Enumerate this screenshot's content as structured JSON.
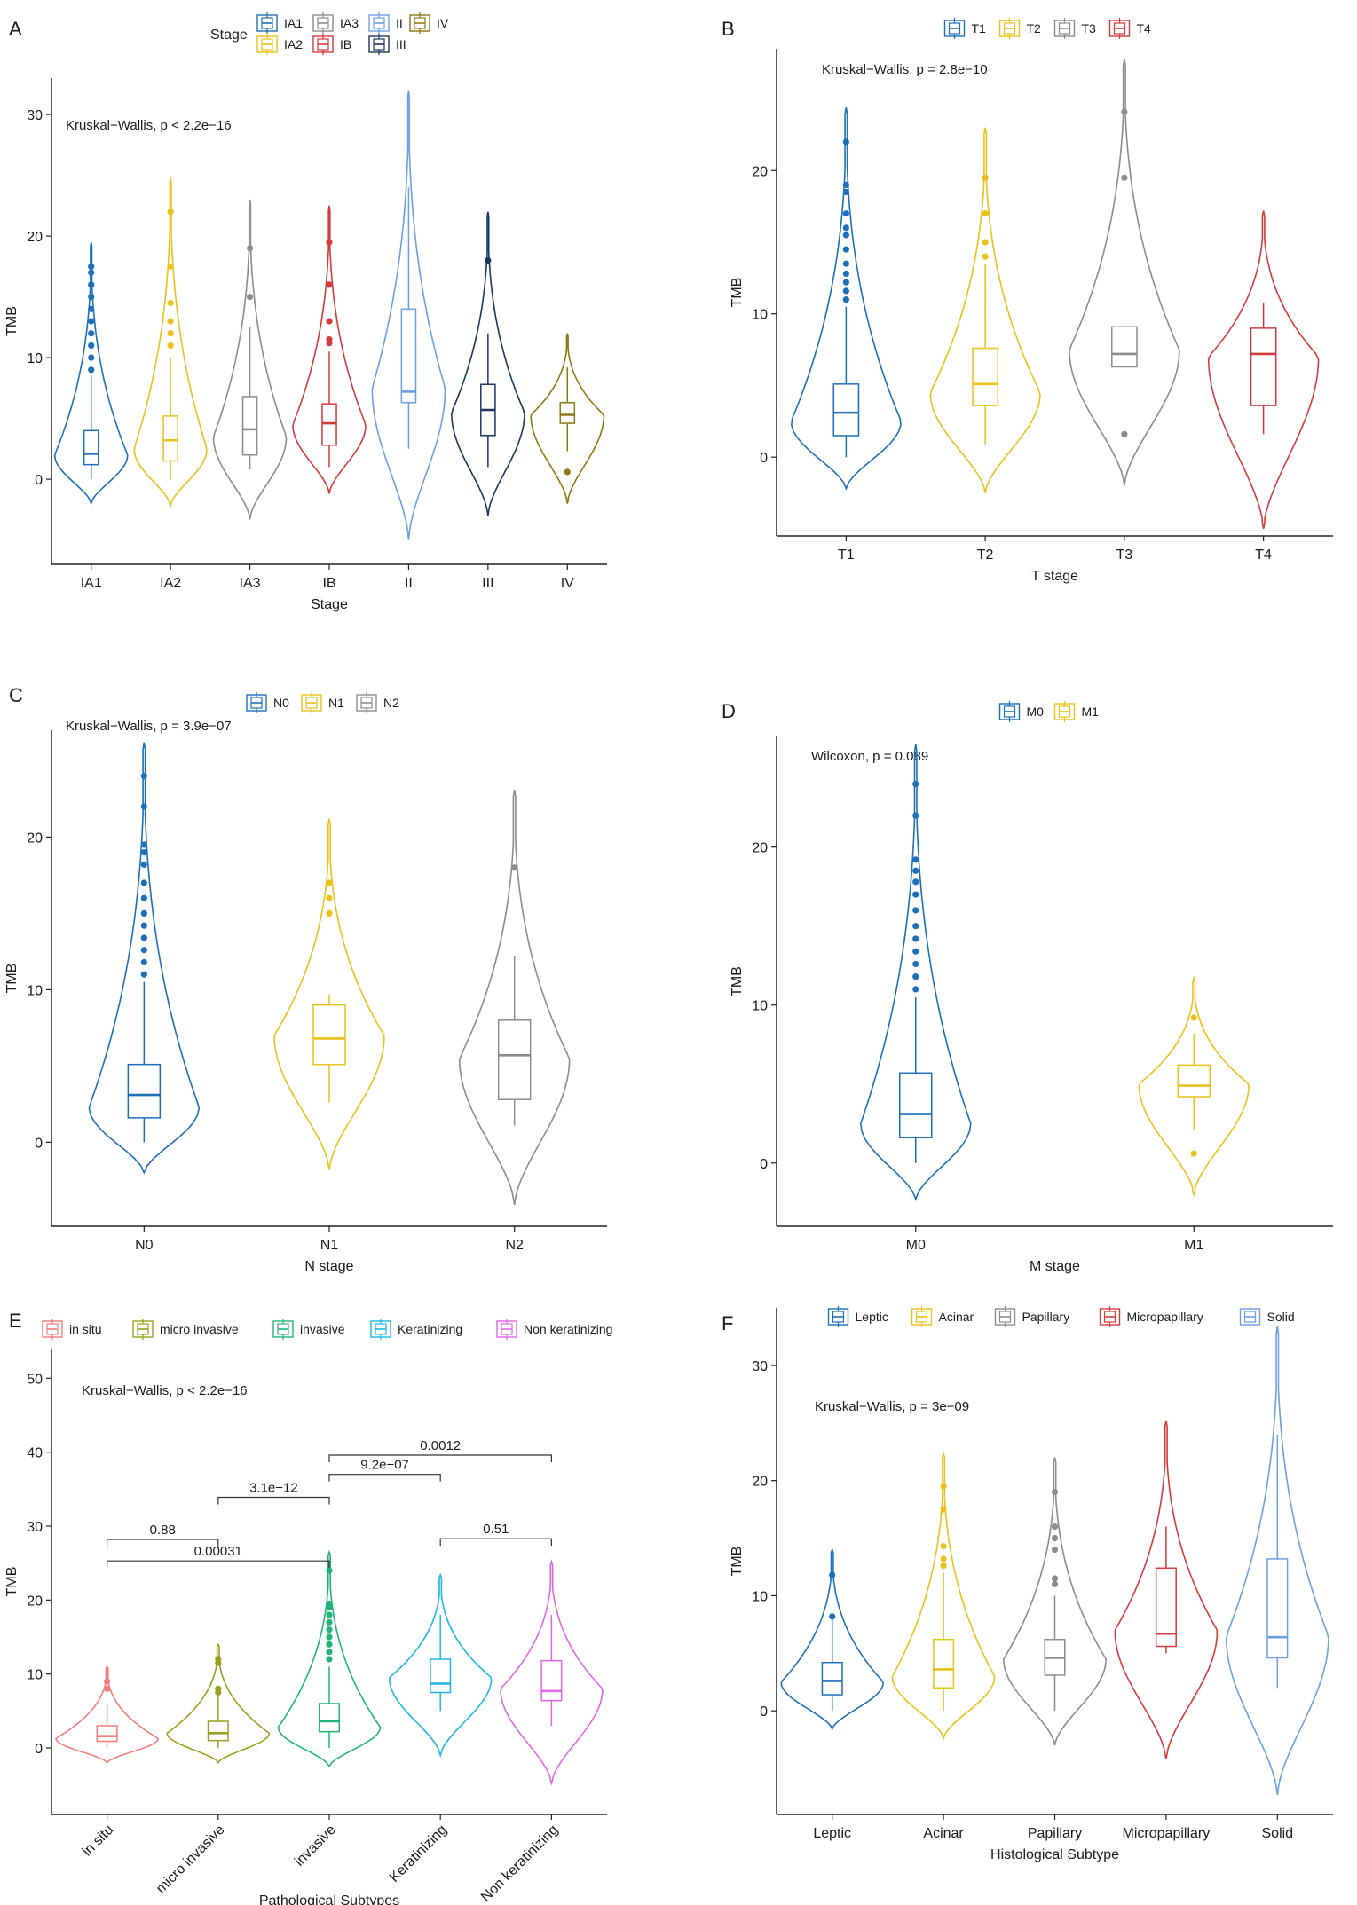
{
  "colors": {
    "blue": "#1F6FB8",
    "yellow": "#E9C11A",
    "gray": "#8C8C8C",
    "red": "#D23B3B",
    "lightblue": "#6E9FE0",
    "navy": "#1C355E",
    "olive": "#8B7A12",
    "salmon": "#F07C7C",
    "olivegreen": "#9AA11F",
    "green": "#22B27A",
    "cyan": "#1DB6E6",
    "magenta": "#E066E8"
  },
  "chart_data": [
    {
      "panel": "A",
      "type": "violin",
      "title": "",
      "xlabel": "Stage",
      "ylabel": "TMB",
      "ylim": [
        -7,
        33
      ],
      "yticks": [
        0,
        10,
        20,
        30
      ],
      "test": "Kruskal−Wallis, p < 2.2e−16",
      "legend_title": "Stage",
      "legend": [
        "IA1",
        "IA2",
        "IA3",
        "IB",
        "II",
        "III",
        "IV"
      ],
      "categories": [
        "IA1",
        "IA2",
        "IA3",
        "IB",
        "II",
        "III",
        "IV"
      ],
      "series": [
        {
          "name": "IA1",
          "color": "blue",
          "vmin": -2,
          "vmax": 19.5,
          "q1": 1.2,
          "median": 2.1,
          "q3": 4.0,
          "wlo": 0,
          "whi": 8.5,
          "mode": 2,
          "outliers": [
            9,
            10,
            11,
            12,
            13,
            14,
            15,
            16,
            17,
            17.5
          ]
        },
        {
          "name": "IA2",
          "color": "yellow",
          "vmin": -2.2,
          "vmax": 24.8,
          "q1": 1.5,
          "median": 3.2,
          "q3": 5.2,
          "wlo": 0,
          "whi": 10,
          "mode": 2.5,
          "outliers": [
            11,
            12,
            13,
            14.5,
            17.5,
            22
          ]
        },
        {
          "name": "IA3",
          "color": "gray",
          "vmin": -3.3,
          "vmax": 23,
          "q1": 2.0,
          "median": 4.1,
          "q3": 6.8,
          "wlo": 0.8,
          "whi": 12.5,
          "mode": 3.5,
          "outliers": [
            15,
            19
          ]
        },
        {
          "name": "IB",
          "color": "red",
          "vmin": -1.2,
          "vmax": 22.5,
          "q1": 2.8,
          "median": 4.6,
          "q3": 6.2,
          "wlo": 1,
          "whi": 10.5,
          "mode": 4.5,
          "outliers": [
            11.2,
            11.5,
            13,
            16,
            19.5
          ]
        },
        {
          "name": "II",
          "color": "lightblue",
          "vmin": -5,
          "vmax": 32,
          "q1": 6.3,
          "median": 7.2,
          "q3": 14,
          "wlo": 2.5,
          "whi": 24,
          "mode": 7.5,
          "outliers": []
        },
        {
          "name": "III",
          "color": "navy",
          "vmin": -3,
          "vmax": 22,
          "q1": 3.6,
          "median": 5.7,
          "q3": 7.8,
          "wlo": 1,
          "whi": 12,
          "mode": 5.5,
          "outliers": [
            18
          ]
        },
        {
          "name": "IV",
          "color": "olive",
          "vmin": -2,
          "vmax": 12,
          "q1": 4.6,
          "median": 5.3,
          "q3": 6.3,
          "wlo": 2.3,
          "whi": 9.2,
          "mode": 5.3,
          "outliers": [
            0.6
          ]
        }
      ],
      "brackets": []
    },
    {
      "panel": "B",
      "type": "violin",
      "title": "",
      "xlabel": "T stage",
      "ylabel": "TMB",
      "ylim": [
        -5.5,
        28.5
      ],
      "yticks": [
        0,
        10,
        20
      ],
      "test": "Kruskal−Wallis, p = 2.8e−10",
      "legend_title": "",
      "legend": [
        "T1",
        "T2",
        "T3",
        "T4"
      ],
      "categories": [
        "T1",
        "T2",
        "T3",
        "T4"
      ],
      "series": [
        {
          "name": "T1",
          "color": "blue",
          "vmin": -2.2,
          "vmax": 24.4,
          "q1": 1.5,
          "median": 3.1,
          "q3": 5.1,
          "wlo": 0,
          "whi": 10.5,
          "mode": 2.5,
          "outliers": [
            11,
            11.6,
            12.2,
            12.8,
            13.5,
            14.5,
            15.5,
            16,
            17,
            18.5,
            19,
            22
          ]
        },
        {
          "name": "T2",
          "color": "yellow",
          "vmin": -2.5,
          "vmax": 23,
          "q1": 3.6,
          "median": 5.1,
          "q3": 7.6,
          "wlo": 0.9,
          "whi": 13.5,
          "mode": 4.5,
          "outliers": [
            14,
            15,
            17,
            19.5
          ]
        },
        {
          "name": "T3",
          "color": "gray",
          "vmin": -2,
          "vmax": 27.8,
          "q1": 6.3,
          "median": 7.2,
          "q3": 9.1,
          "wlo": 6.3,
          "whi": 9.1,
          "mode": 7.5,
          "outliers": [
            1.6,
            19.5,
            24.1
          ]
        },
        {
          "name": "T4",
          "color": "red",
          "vmin": -5,
          "vmax": 17.2,
          "q1": 3.6,
          "median": 7.2,
          "q3": 9.0,
          "wlo": 1.6,
          "whi": 10.8,
          "mode": 7,
          "outliers": []
        }
      ],
      "brackets": []
    },
    {
      "panel": "C",
      "type": "violin",
      "title": "",
      "xlabel": "N stage",
      "ylabel": "TMB",
      "ylim": [
        -5.5,
        27
      ],
      "yticks": [
        0,
        10,
        20
      ],
      "test": "Kruskal−Wallis, p = 3.9e−07",
      "legend_title": "",
      "legend": [
        "N0",
        "N1",
        "N2"
      ],
      "categories": [
        "N0",
        "N1",
        "N2"
      ],
      "series": [
        {
          "name": "N0",
          "color": "blue",
          "vmin": -2,
          "vmax": 26.2,
          "q1": 1.6,
          "median": 3.1,
          "q3": 5.1,
          "wlo": 0,
          "whi": 10.5,
          "mode": 2.3,
          "outliers": [
            11,
            11.8,
            12.6,
            13.4,
            14.2,
            15,
            16,
            17,
            18.2,
            19,
            19.5,
            22,
            24
          ]
        },
        {
          "name": "N1",
          "color": "yellow",
          "vmin": -1.8,
          "vmax": 21.2,
          "q1": 5.1,
          "median": 6.8,
          "q3": 9.0,
          "wlo": 2.6,
          "whi": 9.7,
          "mode": 7,
          "outliers": [
            15,
            16,
            17
          ]
        },
        {
          "name": "N2",
          "color": "gray",
          "vmin": -4.1,
          "vmax": 23.1,
          "q1": 2.8,
          "median": 5.7,
          "q3": 8.0,
          "wlo": 1.1,
          "whi": 12.2,
          "mode": 5.5,
          "outliers": [
            18
          ]
        }
      ],
      "brackets": []
    },
    {
      "panel": "D",
      "type": "violin",
      "title": "",
      "xlabel": "M stage",
      "ylabel": "TMB",
      "ylim": [
        -4,
        27
      ],
      "yticks": [
        0,
        10,
        20
      ],
      "test": "Wilcoxon, p = 0.089",
      "legend_title": "",
      "legend": [
        "M0",
        "M1"
      ],
      "categories": [
        "M0",
        "M1"
      ],
      "series": [
        {
          "name": "M0",
          "color": "blue",
          "vmin": -2.3,
          "vmax": 26.5,
          "q1": 1.6,
          "median": 3.1,
          "q3": 5.7,
          "wlo": 0,
          "whi": 10.5,
          "mode": 2.5,
          "outliers": [
            11,
            11.8,
            12.6,
            13.4,
            14.2,
            15,
            16,
            17,
            17.8,
            18.5,
            19.2,
            22,
            24
          ]
        },
        {
          "name": "M1",
          "color": "yellow",
          "vmin": -2,
          "vmax": 11.7,
          "q1": 4.2,
          "median": 4.9,
          "q3": 6.2,
          "wlo": 2.1,
          "whi": 8.2,
          "mode": 5,
          "outliers": [
            9.2,
            0.6
          ]
        }
      ],
      "brackets": []
    },
    {
      "panel": "E",
      "type": "violin",
      "title": "",
      "xlabel": "Pathological Subtypes",
      "ylabel": "TMB",
      "ylim": [
        -9,
        54
      ],
      "yticks": [
        0,
        10,
        20,
        30,
        40,
        50
      ],
      "test": "Kruskal−Wallis, p < 2.2e−16",
      "legend_title": "",
      "legend": [
        "in situ",
        "micro invasive",
        "invasive",
        "Keratinizing",
        "Non keratinizing"
      ],
      "categories": [
        "in situ",
        "micro invasive",
        "invasive",
        "Keratinizing",
        "Non keratinizing"
      ],
      "series": [
        {
          "name": "in situ",
          "color": "salmon",
          "vmin": -2,
          "vmax": 11,
          "q1": 0.9,
          "median": 1.6,
          "q3": 3.0,
          "wlo": 0,
          "whi": 6,
          "mode": 1.3,
          "outliers": [
            8,
            9
          ]
        },
        {
          "name": "micro invasive",
          "color": "olivegreen",
          "vmin": -2,
          "vmax": 14,
          "q1": 1.0,
          "median": 2.0,
          "q3": 3.6,
          "wlo": 0,
          "whi": 7,
          "mode": 2,
          "outliers": [
            7.5,
            8,
            11.5,
            12
          ]
        },
        {
          "name": "invasive",
          "color": "green",
          "vmin": -2.5,
          "vmax": 26.5,
          "q1": 2.2,
          "median": 3.6,
          "q3": 6.0,
          "wlo": 0,
          "whi": 11,
          "mode": 2.8,
          "outliers": [
            12,
            13,
            14,
            15,
            16,
            17,
            18,
            19,
            19.5,
            24
          ]
        },
        {
          "name": "Keratinizing",
          "color": "cyan",
          "vmin": -1,
          "vmax": 23.4,
          "q1": 7.5,
          "median": 8.7,
          "q3": 12.0,
          "wlo": 5,
          "whi": 18,
          "mode": 9.5,
          "outliers": []
        },
        {
          "name": "Non keratinizing",
          "color": "magenta",
          "vmin": -4.8,
          "vmax": 25.2,
          "q1": 6.4,
          "median": 7.7,
          "q3": 11.8,
          "wlo": 3,
          "whi": 18,
          "mode": 8,
          "outliers": []
        }
      ],
      "brackets": [
        {
          "from": 0,
          "to": 1,
          "y": 28.2,
          "label": "0.88"
        },
        {
          "from": 0,
          "to": 2,
          "y": 25.3,
          "label": "0.00031"
        },
        {
          "from": 1,
          "to": 2,
          "y": 33.9,
          "label": "3.1e−12"
        },
        {
          "from": 2,
          "to": 3,
          "y": 37.0,
          "label": "9.2e−07"
        },
        {
          "from": 2,
          "to": 4,
          "y": 39.6,
          "label": "0.0012"
        },
        {
          "from": 3,
          "to": 4,
          "y": 28.3,
          "label": "0.51"
        }
      ]
    },
    {
      "panel": "F",
      "type": "violin",
      "title": "",
      "xlabel": "Histological Subtype",
      "ylabel": "TMB",
      "ylim": [
        -9,
        35
      ],
      "yticks": [
        0,
        10,
        20,
        30
      ],
      "test": "Kruskal−Wallis, p = 3e−09",
      "legend_title": "",
      "legend": [
        "Leptic",
        "Acinar",
        "Papillary",
        "Micropapillary",
        "Solid"
      ],
      "categories": [
        "Leptic",
        "Acinar",
        "Papillary",
        "Micropapillary",
        "Solid"
      ],
      "series": [
        {
          "name": "Leptic",
          "color": "blue",
          "vmin": -1.6,
          "vmax": 14,
          "q1": 1.4,
          "median": 2.6,
          "q3": 4.2,
          "wlo": 0,
          "whi": 8,
          "mode": 2.5,
          "outliers": [
            8.2,
            11.8
          ]
        },
        {
          "name": "Acinar",
          "color": "yellow",
          "vmin": -2.4,
          "vmax": 22.4,
          "q1": 2.0,
          "median": 3.6,
          "q3": 6.2,
          "wlo": 0,
          "whi": 12,
          "mode": 3,
          "outliers": [
            12.6,
            13.2,
            14.3,
            17.5,
            19.5
          ]
        },
        {
          "name": "Papillary",
          "color": "gray",
          "vmin": -3,
          "vmax": 22,
          "q1": 3.1,
          "median": 4.6,
          "q3": 6.2,
          "wlo": 0,
          "whi": 10,
          "mode": 4.5,
          "outliers": [
            11,
            11.5,
            14,
            15,
            16,
            19
          ]
        },
        {
          "name": "Micropapillary",
          "color": "red",
          "vmin": -4.2,
          "vmax": 25.2,
          "q1": 5.6,
          "median": 6.7,
          "q3": 12.4,
          "wlo": 5,
          "whi": 16,
          "mode": 7,
          "outliers": []
        },
        {
          "name": "Solid",
          "color": "lightblue",
          "vmin": -7.3,
          "vmax": 33.4,
          "q1": 4.6,
          "median": 6.4,
          "q3": 13.2,
          "wlo": 2,
          "whi": 24,
          "mode": 6.5,
          "outliers": []
        }
      ],
      "brackets": []
    }
  ]
}
